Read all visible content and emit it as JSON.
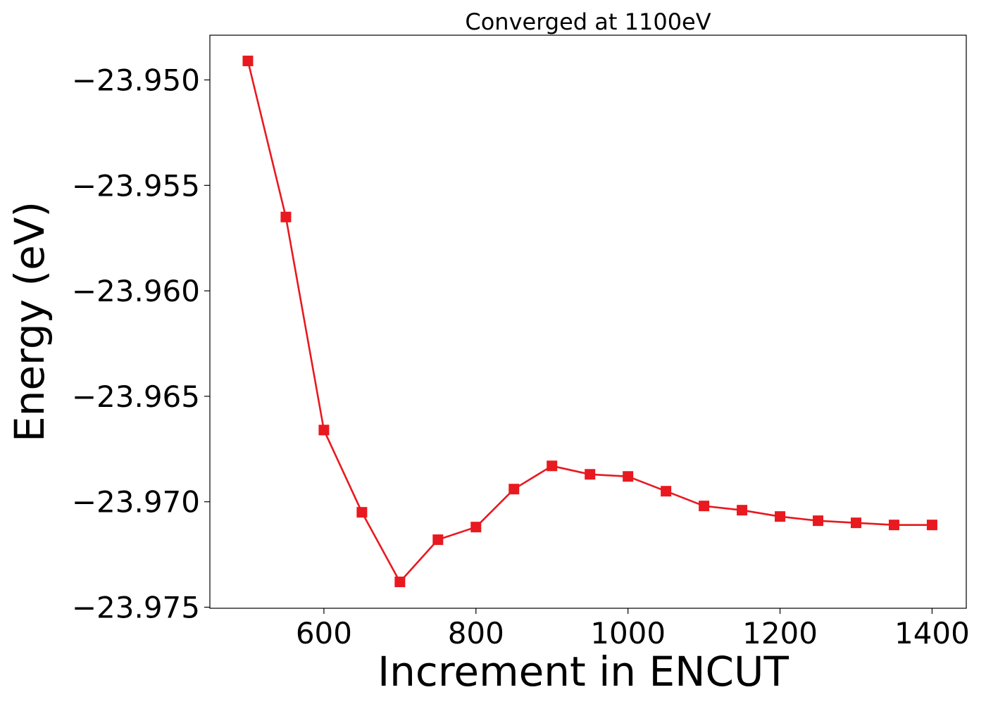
{
  "chart_data": {
    "type": "line",
    "title": "Converged at 1100eV",
    "xlabel": "Increment in ENCUT",
    "ylabel": "Energy (eV)",
    "xlim": [
      450,
      1445
    ],
    "ylim": [
      -23.97505,
      -23.94788
    ],
    "xticks": [
      600,
      800,
      1000,
      1200,
      1400
    ],
    "xtick_labels": [
      "600",
      "800",
      "1000",
      "1200",
      "1400"
    ],
    "yticks": [
      -23.95,
      -23.955,
      -23.96,
      -23.965,
      -23.97,
      -23.975
    ],
    "ytick_labels": [
      "−23.950",
      "−23.955",
      "−23.960",
      "−23.965",
      "−23.970",
      "−23.975"
    ],
    "grid": false,
    "series": [
      {
        "color": "#e8191f",
        "marker": "square",
        "x": [
          500,
          550,
          600,
          650,
          700,
          750,
          800,
          850,
          900,
          950,
          1000,
          1050,
          1100,
          1150,
          1200,
          1250,
          1300,
          1350,
          1400
        ],
        "y": [
          -23.9491,
          -23.9565,
          -23.9666,
          -23.9705,
          -23.9738,
          -23.9718,
          -23.9712,
          -23.9694,
          -23.9683,
          -23.9687,
          -23.9688,
          -23.9695,
          -23.9702,
          -23.9704,
          -23.9707,
          -23.9709,
          -23.971,
          -23.9711,
          -23.9711
        ]
      }
    ]
  }
}
